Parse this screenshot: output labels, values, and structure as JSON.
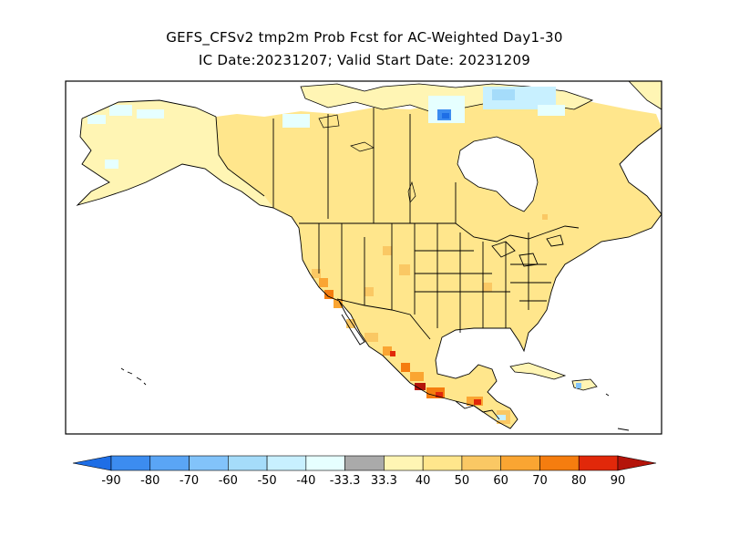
{
  "header": {
    "title_line1": "GEFS_CFSv2 tmp2m Prob Fcst for AC-Weighted Day1-30",
    "title_line2": "IC Date:20231207; Valid Start Date: 20231209"
  },
  "map": {
    "region": "North America",
    "projection": "cylindrical lat-lon",
    "variable": "2m temperature probability (%)",
    "background_color": "#ffffff",
    "outline_color": "#000000"
  },
  "legend": {
    "bins": [
      {
        "color": "#1e6ee6"
      },
      {
        "color": "#3c8cf0"
      },
      {
        "color": "#5aa5f5"
      },
      {
        "color": "#82c3fa"
      },
      {
        "color": "#a5dcfa"
      },
      {
        "color": "#c8f0ff"
      },
      {
        "color": "#e6ffff"
      },
      {
        "color": "#aaaaaa"
      },
      {
        "color": "#fff5b4"
      },
      {
        "color": "#ffe68c"
      },
      {
        "color": "#fac864"
      },
      {
        "color": "#faa532"
      },
      {
        "color": "#f57d0f"
      },
      {
        "color": "#e1280a"
      },
      {
        "color": "#b4140a"
      }
    ],
    "tick_labels": [
      "-90",
      "-80",
      "-70",
      "-60",
      "-50",
      "-40",
      "-33.3",
      "33.3",
      "40",
      "50",
      "60",
      "70",
      "80",
      "90"
    ]
  },
  "colors": {
    "above_40": "#fff5b4",
    "above_50": "#ffe68c",
    "above_60": "#fac864",
    "above_70": "#faa532",
    "above_80": "#f57d0f",
    "above_90": "#e1280a",
    "below_40": "#e6ffff",
    "below_50": "#c8f0ff",
    "below_60": "#a5dcfa",
    "below_80": "#3c8cf0",
    "below_90": "#1e6ee6"
  }
}
